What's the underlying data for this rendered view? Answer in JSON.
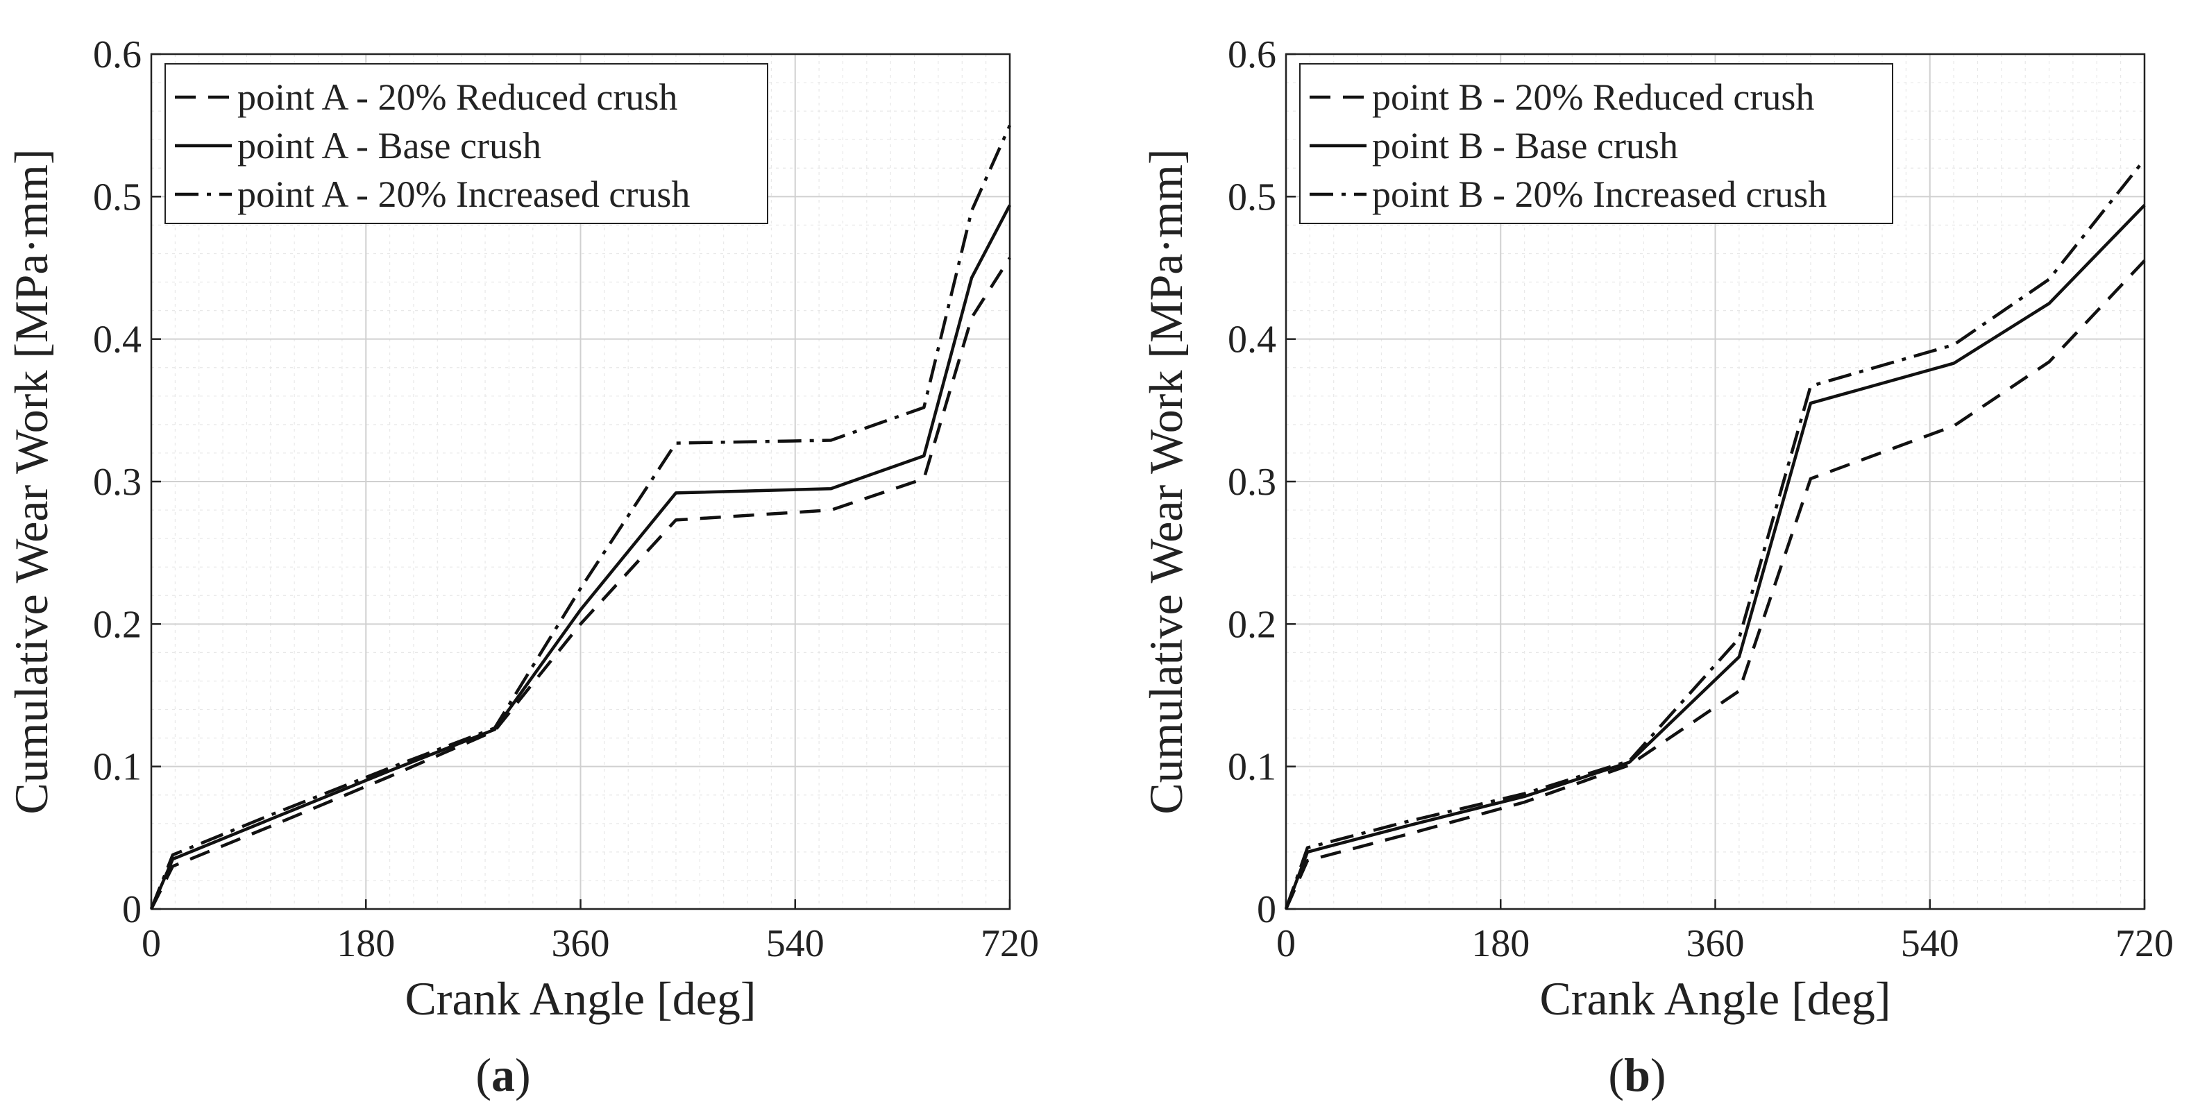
{
  "figure": {
    "captions": [
      {
        "open": "(",
        "letter": "a",
        "close": ")"
      },
      {
        "open": "(",
        "letter": "b",
        "close": ")"
      }
    ]
  },
  "colors": {
    "line": "#111111",
    "grid_major": "#d0d0d0",
    "grid_minor": "#e8e8e8",
    "axis": "#222222"
  },
  "chart_data": [
    {
      "type": "line",
      "xlabel": "Crank Angle [deg]",
      "ylabel": "Cumulative Wear Work [MPa·mm]",
      "xlim": [
        0,
        720
      ],
      "ylim": [
        0,
        0.6
      ],
      "xticks": [
        0,
        180,
        360,
        540,
        720
      ],
      "yticks": [
        0,
        0.1,
        0.2,
        0.3,
        0.4,
        0.5,
        0.6
      ],
      "ytick_labels": [
        "0",
        "0.1",
        "0.2",
        "0.3",
        "0.4",
        "0.5",
        "0.6"
      ],
      "grid": true,
      "legend_position": "top-left",
      "series": [
        {
          "name": "point A - 20% Reduced crush",
          "style": "dashed",
          "x": [
            0,
            18,
            100,
            200,
            288,
            360,
            440,
            570,
            648,
            688,
            720
          ],
          "y": [
            0,
            0.03,
            0.058,
            0.093,
            0.125,
            0.2,
            0.273,
            0.28,
            0.302,
            0.415,
            0.457
          ]
        },
        {
          "name": "point A - Base crush",
          "style": "solid",
          "x": [
            0,
            18,
            100,
            200,
            288,
            360,
            440,
            570,
            648,
            688,
            720
          ],
          "y": [
            0,
            0.035,
            0.063,
            0.097,
            0.126,
            0.21,
            0.292,
            0.295,
            0.318,
            0.443,
            0.494
          ]
        },
        {
          "name": "point A - 20% Increased crush",
          "style": "dashdot",
          "x": [
            0,
            18,
            100,
            200,
            288,
            360,
            440,
            570,
            648,
            688,
            720
          ],
          "y": [
            0,
            0.038,
            0.066,
            0.099,
            0.127,
            0.225,
            0.327,
            0.329,
            0.352,
            0.49,
            0.55
          ]
        }
      ]
    },
    {
      "type": "line",
      "xlabel": "Crank Angle [deg]",
      "ylabel": "Cumulative Wear Work [MPa·mm]",
      "xlim": [
        0,
        720
      ],
      "ylim": [
        0,
        0.6
      ],
      "xticks": [
        0,
        180,
        360,
        540,
        720
      ],
      "yticks": [
        0,
        0.1,
        0.2,
        0.3,
        0.4,
        0.5,
        0.6
      ],
      "ytick_labels": [
        "0",
        "0.1",
        "0.2",
        "0.3",
        "0.4",
        "0.5",
        "0.6"
      ],
      "grid": true,
      "legend_position": "top-left",
      "series": [
        {
          "name": "point B - 20% Reduced crush",
          "style": "dashed",
          "x": [
            0,
            18,
            100,
            200,
            288,
            380,
            440,
            560,
            640,
            720
          ],
          "y": [
            0,
            0.034,
            0.052,
            0.075,
            0.101,
            0.153,
            0.302,
            0.339,
            0.384,
            0.455
          ]
        },
        {
          "name": "point B - Base crush",
          "style": "solid",
          "x": [
            0,
            18,
            100,
            200,
            288,
            380,
            440,
            560,
            640,
            720
          ],
          "y": [
            0,
            0.04,
            0.058,
            0.079,
            0.103,
            0.177,
            0.355,
            0.383,
            0.425,
            0.494
          ]
        },
        {
          "name": "point B - 20% Increased crush",
          "style": "dashdot",
          "x": [
            0,
            18,
            100,
            200,
            288,
            380,
            440,
            560,
            640,
            720
          ],
          "y": [
            0,
            0.043,
            0.061,
            0.081,
            0.104,
            0.19,
            0.367,
            0.396,
            0.442,
            0.526
          ]
        }
      ]
    }
  ]
}
